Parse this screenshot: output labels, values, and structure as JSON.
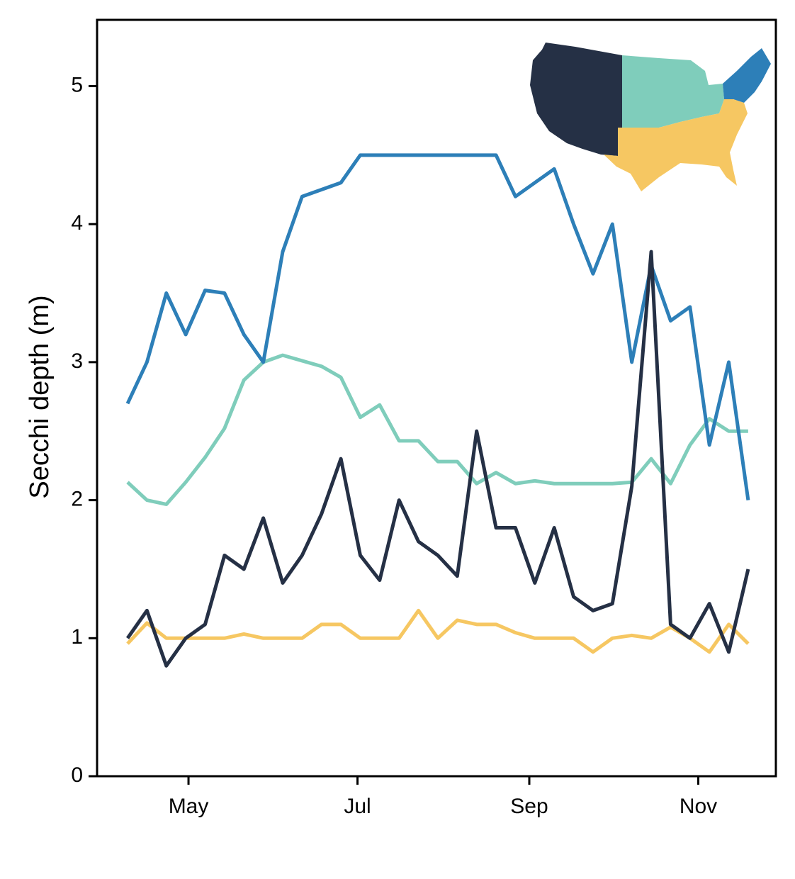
{
  "chart_data": {
    "type": "line",
    "y_label": "Secchi depth (m)",
    "x": [
      99,
      106,
      113,
      120,
      127,
      134,
      141,
      148,
      155,
      162,
      169,
      176,
      183,
      190,
      197,
      204,
      211,
      218,
      225,
      232,
      239,
      246,
      253,
      260,
      267,
      274,
      281,
      288,
      295,
      302,
      309,
      316,
      323
    ],
    "xlim": [
      88,
      333
    ],
    "xticks": [
      {
        "value": 121,
        "label": "May"
      },
      {
        "value": 182,
        "label": "Jul"
      },
      {
        "value": 244,
        "label": "Sep"
      },
      {
        "value": 305,
        "label": "Nov"
      }
    ],
    "ylim": [
      0,
      5.48
    ],
    "yticks": [
      0,
      1,
      2,
      3,
      4,
      5
    ],
    "series": [
      {
        "color": "#f6c762",
        "values": [
          0.96,
          1.11,
          1.0,
          1.0,
          1.0,
          1.0,
          1.03,
          1.0,
          1.0,
          1.0,
          1.1,
          1.1,
          1.0,
          1.0,
          1.0,
          1.2,
          1.0,
          1.13,
          1.1,
          1.1,
          1.04,
          1.0,
          1.0,
          1.0,
          0.9,
          1.0,
          1.02,
          1.0,
          1.08,
          1.0,
          0.9,
          1.1,
          0.96
        ]
      },
      {
        "color": "#7fcdbb",
        "values": [
          2.13,
          2.0,
          1.97,
          2.13,
          2.31,
          2.52,
          2.87,
          3.0,
          3.05,
          3.01,
          2.97,
          2.89,
          2.6,
          2.69,
          2.43,
          2.43,
          2.28,
          2.28,
          2.12,
          2.2,
          2.12,
          2.14,
          2.12,
          2.12,
          2.12,
          2.12,
          2.13,
          2.3,
          2.12,
          2.4,
          2.59,
          2.5,
          2.5
        ]
      },
      {
        "color": "#2d7fb8",
        "values": [
          2.7,
          3.0,
          3.5,
          3.2,
          3.52,
          3.5,
          3.2,
          3.0,
          3.8,
          4.2,
          4.25,
          4.3,
          4.5,
          4.5,
          4.5,
          4.5,
          4.5,
          4.5,
          4.5,
          4.5,
          4.2,
          4.3,
          4.4,
          4.0,
          3.64,
          4.0,
          3.0,
          3.7,
          3.3,
          3.4,
          2.4,
          3.0,
          2.0
        ]
      },
      {
        "color": "#253045",
        "values": [
          1.0,
          1.2,
          0.8,
          1.0,
          1.1,
          1.6,
          1.5,
          1.87,
          1.4,
          1.6,
          1.9,
          2.3,
          1.6,
          1.42,
          2.0,
          1.7,
          1.6,
          1.45,
          2.5,
          1.8,
          1.8,
          1.4,
          1.8,
          1.3,
          1.2,
          1.25,
          2.1,
          3.8,
          1.1,
          1.0,
          1.25,
          0.9,
          1.5
        ]
      }
    ]
  }
}
